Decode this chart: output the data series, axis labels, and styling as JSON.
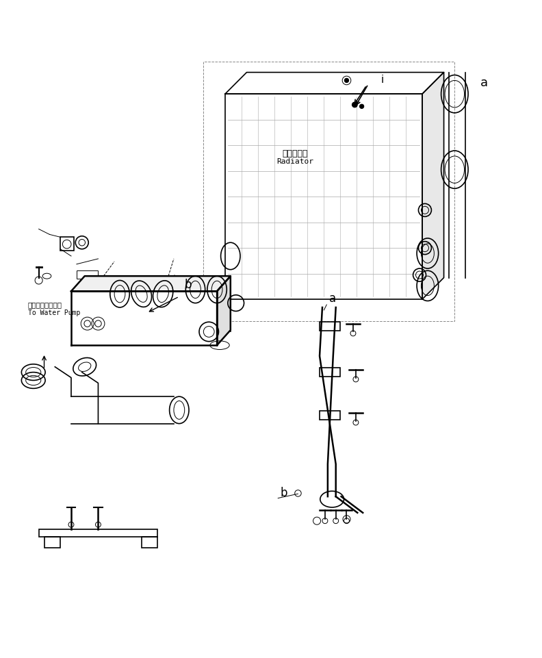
{
  "bg_color": "#ffffff",
  "line_color": "#000000",
  "light_line_color": "#888888",
  "figsize": [
    7.92,
    9.61
  ],
  "dpi": 100,
  "labels": {
    "radiator_jp": "ラジエータ",
    "radiator_en": "Radiator",
    "water_pump_jp": "ウォータポンプへ",
    "water_pump_en": "To Water Pump",
    "label_a": "a",
    "label_b": "b",
    "label_i": "i"
  }
}
